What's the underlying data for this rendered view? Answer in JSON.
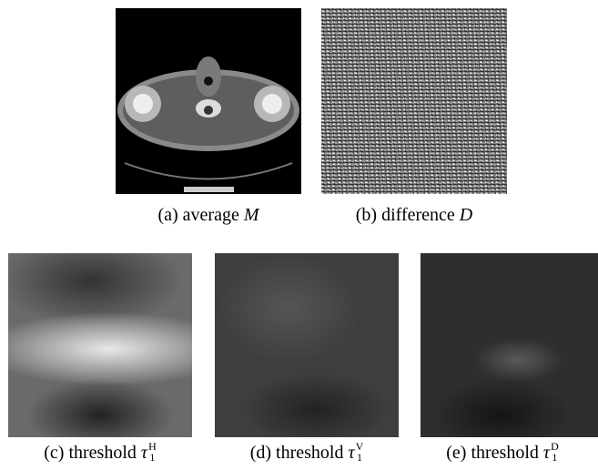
{
  "panels": [
    {
      "label": "(a) average",
      "symbol": "M"
    },
    {
      "label": "(b) difference",
      "symbol": "D"
    },
    {
      "label": "(c) threshold",
      "symbol": "τ",
      "subscript": "1",
      "superscript": "H"
    },
    {
      "label": "(d) threshold",
      "symbol": "τ",
      "subscript": "1",
      "superscript": "V"
    },
    {
      "label": "(e) threshold",
      "symbol": "τ",
      "subscript": "1",
      "superscript": "D"
    }
  ]
}
